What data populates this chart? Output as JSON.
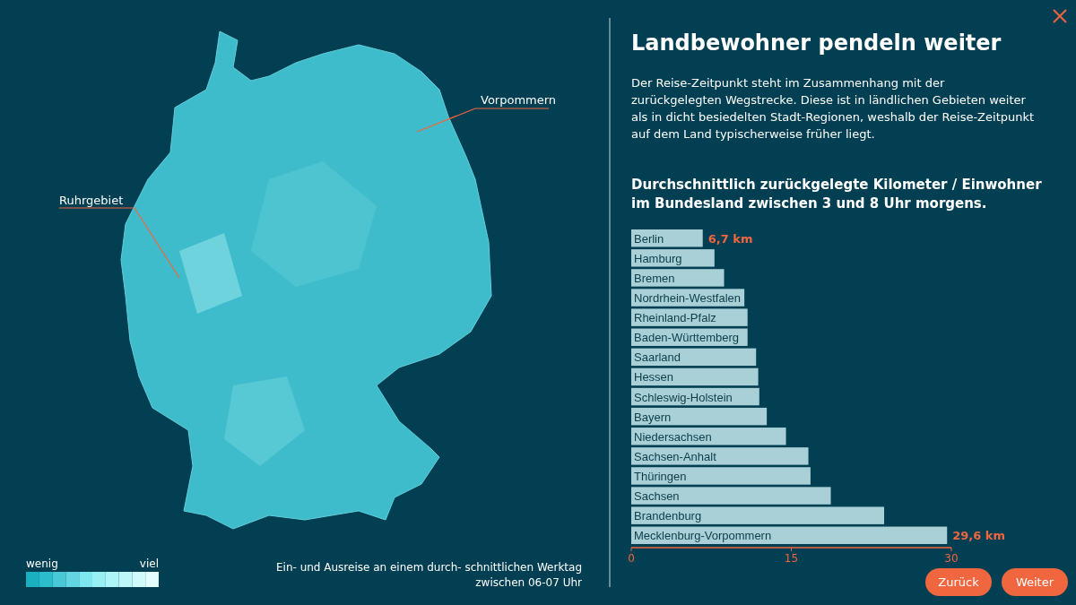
{
  "chart_data": [
    {
      "type": "other",
      "annotations": [
        "Ruhrgebiet",
        "Vorpommern",
        "wenig",
        "viel",
        "Ein- und Ausreise an einem durch- schnittlichen Werktag",
        "zwischen 06-07 Uhr"
      ]
    },
    {
      "type": "bar",
      "orientation": "horizontal",
      "title": "Landbewohner pendeln weiter",
      "subtitle": "Der Reise-Zeitpunkt steht im Zusammenhang mit der zurückgelegten Wegstrecke. Diese ist in ländlichen Gebieten weiter als in dicht besiedelten Stadt-Regionen, weshalb der Reise-Zeitpunkt auf dem Land typischerweise früher liegt.",
      "annotations": [
        "Durchschnittlich zurückgelegte Kilometer / Einwohner im Bundesland zwischen 3 und 8 Uhr morgens.",
        "Zurück",
        "Weiter"
      ],
      "categories": [
        "Berlin",
        "Hamburg",
        "Bremen",
        "Nordrhein-Westfalen",
        "Rheinland-Pfalz",
        "Baden-Württemberg",
        "Saarland",
        "Hessen",
        "Schleswig-Holstein",
        "Bayern",
        "Niedersachsen",
        "Sachsen-Anhalt",
        "Thüringen",
        "Sachsen",
        "Brandenburg",
        "Mecklenburg-Vorpommern"
      ],
      "values": [
        6.7,
        7.8,
        8.7,
        10.6,
        10.9,
        10.9,
        11.7,
        11.9,
        12.0,
        12.7,
        14.5,
        16.6,
        16.8,
        18.7,
        23.7,
        29.6
      ],
      "value_labels": [
        "6,7 km",
        null,
        null,
        null,
        null,
        null,
        null,
        null,
        null,
        null,
        null,
        null,
        null,
        null,
        null,
        "29,6 km"
      ],
      "color": "#a8d0d6",
      "xlim": [
        0,
        30
      ],
      "xticks": [
        0,
        15,
        30
      ]
    }
  ]
}
